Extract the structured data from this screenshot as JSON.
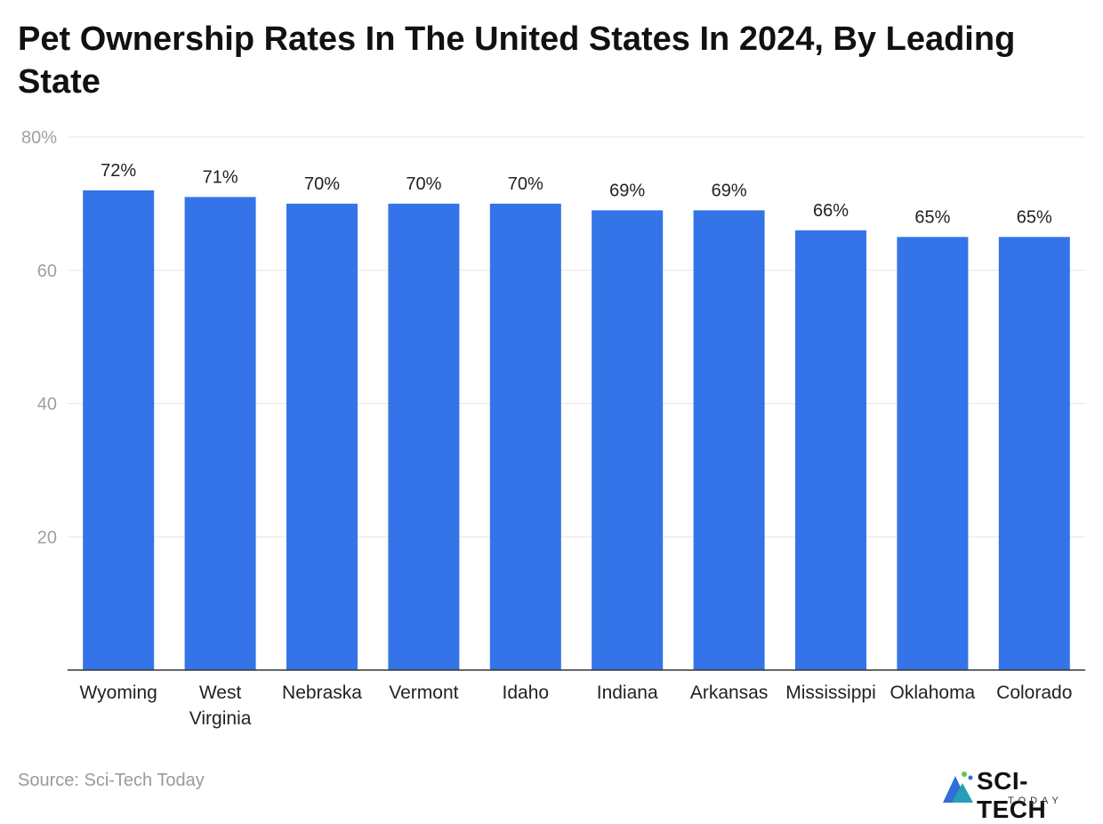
{
  "title": "Pet Ownership Rates In The United States In 2024, By Leading State",
  "source": "Source: Sci-Tech Today",
  "logo": {
    "main": "SCI-TECH",
    "sub": "TODAY"
  },
  "colors": {
    "bar": "#3474E8",
    "grid": "#e5e5e5",
    "axis": "#333333",
    "tick": "#a0a0a0",
    "label": "#222222"
  },
  "chart_data": {
    "type": "bar",
    "categories": [
      "Wyoming",
      "West Virginia",
      "Nebraska",
      "Vermont",
      "Idaho",
      "Indiana",
      "Arkansas",
      "Mississippi",
      "Oklahoma",
      "Colorado"
    ],
    "values": [
      72,
      71,
      70,
      70,
      70,
      69,
      69,
      66,
      65,
      65
    ],
    "data_labels": [
      "72%",
      "71%",
      "70%",
      "70%",
      "70%",
      "69%",
      "69%",
      "66%",
      "65%",
      "65%"
    ],
    "category_lines": [
      [
        "Wyoming"
      ],
      [
        "West",
        "Virginia"
      ],
      [
        "Nebraska"
      ],
      [
        "Vermont"
      ],
      [
        "Idaho"
      ],
      [
        "Indiana"
      ],
      [
        "Arkansas"
      ],
      [
        "Mississippi"
      ],
      [
        "Oklahoma"
      ],
      [
        "Colorado"
      ]
    ],
    "yticks": [
      20,
      40,
      60,
      80
    ],
    "ytick_labels": [
      "20",
      "40",
      "60",
      "80%"
    ],
    "ylim": [
      0,
      80
    ],
    "title": "Pet Ownership Rates In The United States In 2024, By Leading State",
    "xlabel": "",
    "ylabel": ""
  }
}
